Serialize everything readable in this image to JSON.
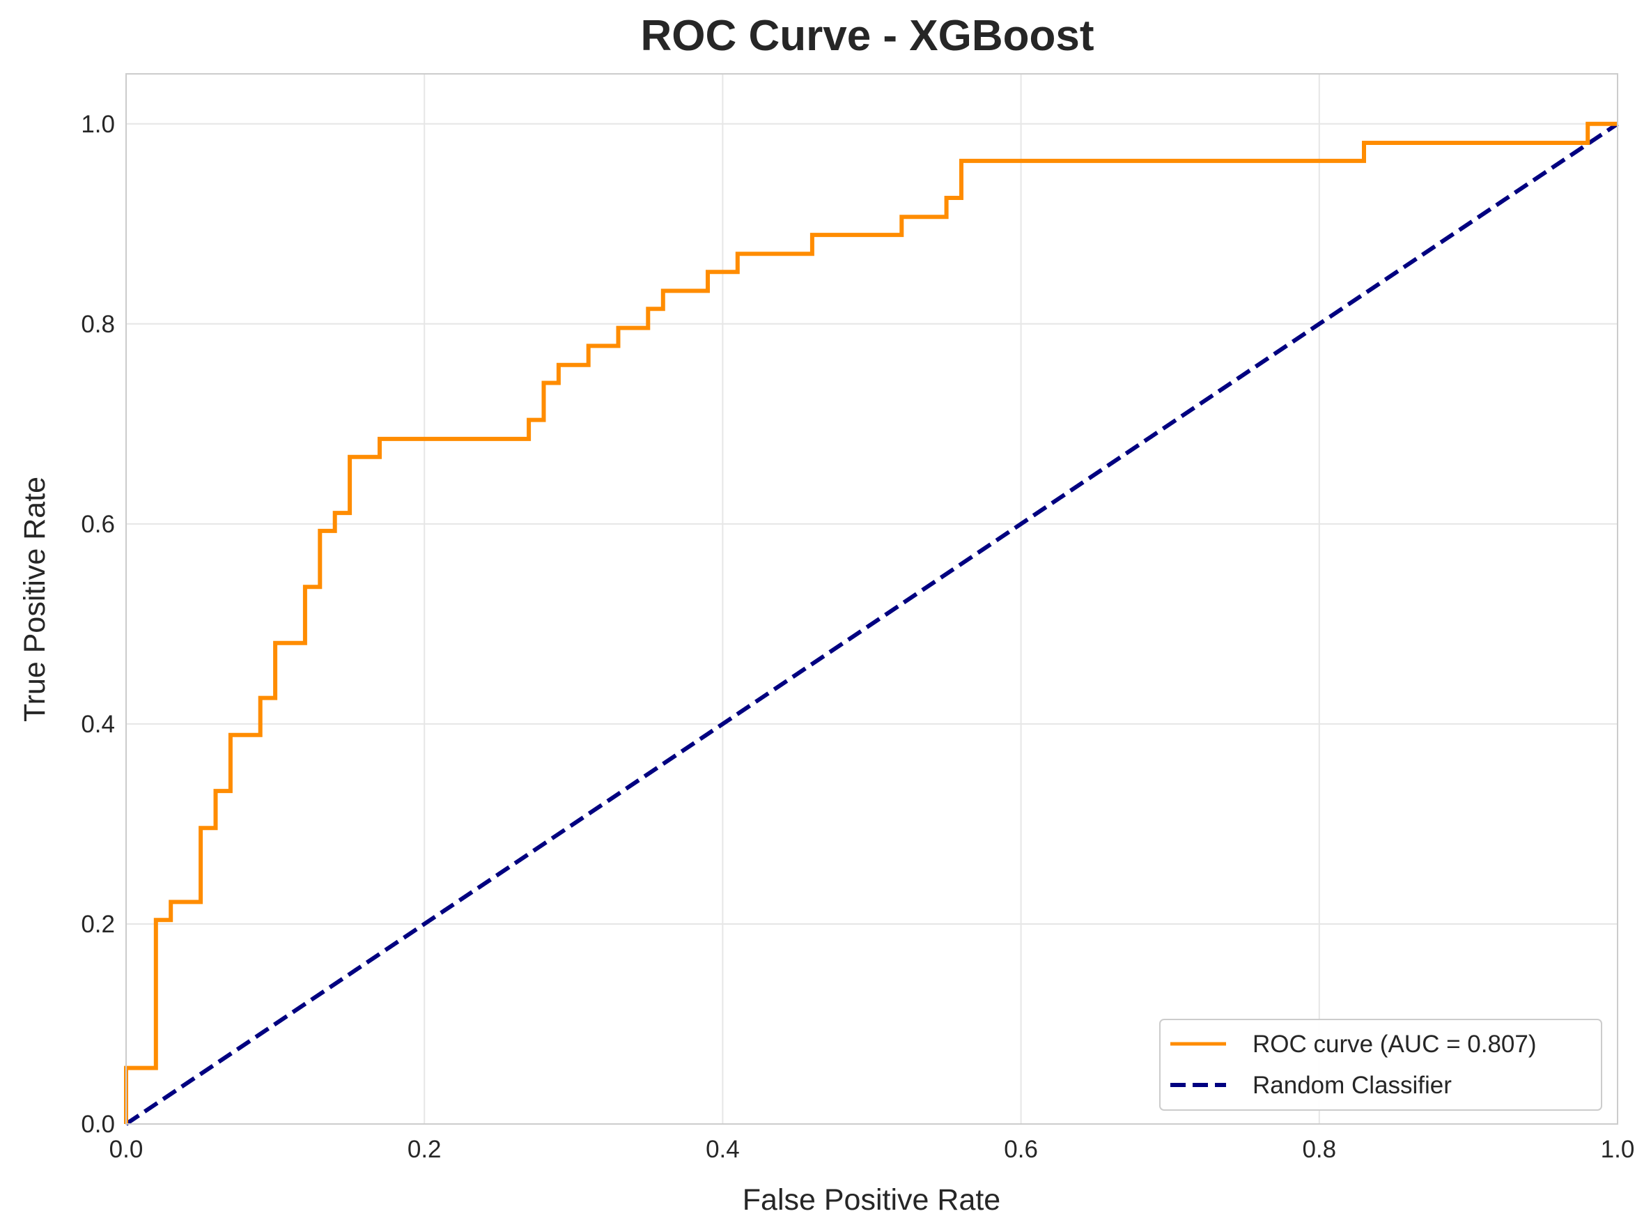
{
  "chart_data": {
    "type": "line",
    "title": "ROC Curve - XGBoost",
    "xlabel": "False Positive Rate",
    "ylabel": "True Positive Rate",
    "xlim": [
      0.0,
      1.0
    ],
    "ylim": [
      0.0,
      1.05
    ],
    "xticks": [
      "0.0",
      "0.2",
      "0.4",
      "0.6",
      "0.8",
      "1.0"
    ],
    "yticks": [
      "0.0",
      "0.2",
      "0.4",
      "0.6",
      "0.8",
      "1.0"
    ],
    "xtick_values": [
      0.0,
      0.2,
      0.4,
      0.6,
      0.8,
      1.0
    ],
    "ytick_values": [
      0.0,
      0.2,
      0.4,
      0.6,
      0.8,
      1.0
    ],
    "grid": true,
    "legend_position": "lower-right",
    "series": [
      {
        "name": "ROC curve (AUC = 0.807)",
        "color": "#ff8c00",
        "style": "solid",
        "x": [
          0.0,
          0.0,
          0.02,
          0.02,
          0.03,
          0.03,
          0.05,
          0.05,
          0.06,
          0.06,
          0.07,
          0.07,
          0.09,
          0.09,
          0.1,
          0.1,
          0.12,
          0.12,
          0.13,
          0.13,
          0.14,
          0.14,
          0.15,
          0.15,
          0.17,
          0.17,
          0.27,
          0.27,
          0.28,
          0.28,
          0.29,
          0.29,
          0.31,
          0.31,
          0.33,
          0.33,
          0.35,
          0.35,
          0.36,
          0.36,
          0.39,
          0.39,
          0.41,
          0.41,
          0.46,
          0.46,
          0.52,
          0.52,
          0.55,
          0.55,
          0.56,
          0.56,
          0.83,
          0.83,
          0.98,
          0.98,
          1.0
        ],
        "y": [
          0.0,
          0.056,
          0.056,
          0.204,
          0.204,
          0.222,
          0.222,
          0.296,
          0.296,
          0.333,
          0.333,
          0.389,
          0.389,
          0.426,
          0.426,
          0.481,
          0.481,
          0.537,
          0.537,
          0.593,
          0.593,
          0.611,
          0.611,
          0.667,
          0.667,
          0.685,
          0.685,
          0.704,
          0.704,
          0.741,
          0.741,
          0.759,
          0.759,
          0.778,
          0.778,
          0.796,
          0.796,
          0.815,
          0.815,
          0.833,
          0.833,
          0.852,
          0.852,
          0.87,
          0.87,
          0.889,
          0.889,
          0.907,
          0.907,
          0.926,
          0.926,
          0.963,
          0.963,
          0.981,
          0.981,
          1.0,
          1.0
        ]
      },
      {
        "name": "Random Classifier",
        "color": "#000080",
        "style": "dashed",
        "x": [
          0.0,
          1.0
        ],
        "y": [
          0.0,
          1.0
        ]
      }
    ]
  }
}
